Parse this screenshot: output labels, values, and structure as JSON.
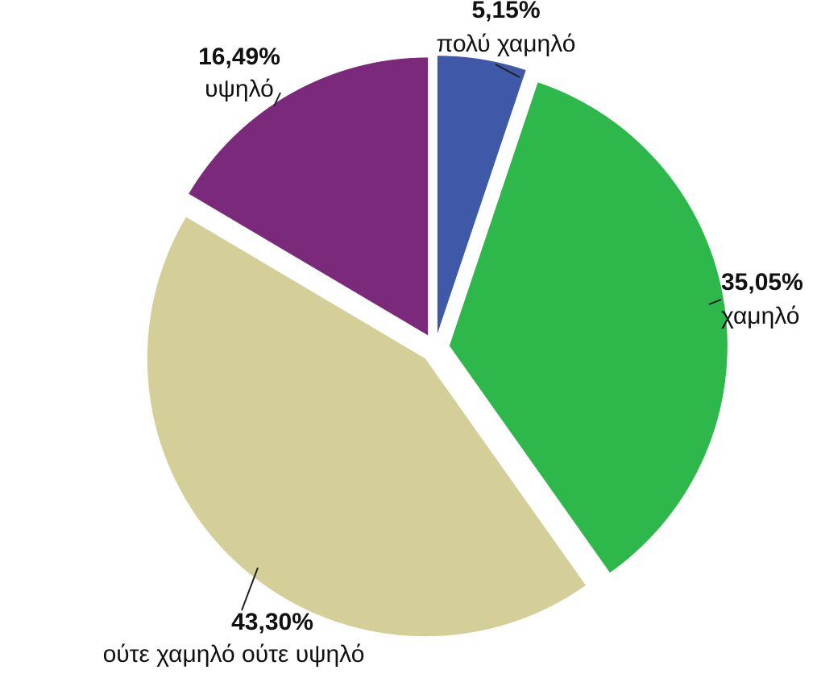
{
  "chart_data": {
    "type": "pie",
    "categories": [
      "πολύ χαμηλό",
      "χαμηλό",
      "ούτε χαμηλό ούτε υψηλό",
      "υψηλό"
    ],
    "values": [
      5.15,
      35.05,
      43.3,
      16.49
    ],
    "value_labels": [
      "5,15%",
      "35,05%",
      "43,30%",
      "16,49%"
    ],
    "colors": [
      "#3f58a8",
      "#2eb84b",
      "#d4cf98",
      "#7b2a7b"
    ]
  }
}
